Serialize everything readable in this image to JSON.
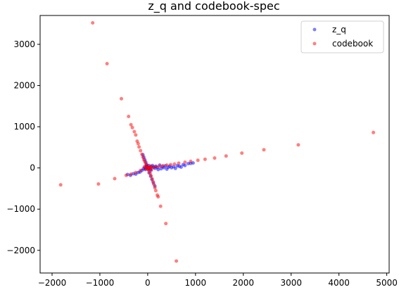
{
  "chart_data": {
    "type": "scatter",
    "title": "z_q and codebook-spec",
    "xlabel": "",
    "ylabel": "",
    "xlim": [
      -2250,
      5050
    ],
    "ylim": [
      -2550,
      3700
    ],
    "xticks": [
      -2000,
      -1000,
      0,
      1000,
      2000,
      3000,
      4000,
      5000
    ],
    "yticks": [
      -2000,
      -1000,
      0,
      1000,
      2000,
      3000
    ],
    "grid": false,
    "legend_position": "upper right",
    "series": [
      {
        "name": "z_q",
        "color": "#0000ff",
        "points": [
          [
            -90,
            -20
          ],
          [
            -60,
            10
          ],
          [
            -40,
            -5
          ],
          [
            -20,
            20
          ],
          [
            0,
            0
          ],
          [
            20,
            -15
          ],
          [
            40,
            10
          ],
          [
            60,
            -30
          ],
          [
            80,
            30
          ],
          [
            100,
            60
          ],
          [
            130,
            20
          ],
          [
            150,
            -10
          ],
          [
            170,
            40
          ],
          [
            200,
            10
          ],
          [
            220,
            -40
          ],
          [
            250,
            70
          ],
          [
            280,
            -20
          ],
          [
            310,
            30
          ],
          [
            340,
            5
          ],
          [
            370,
            50
          ],
          [
            400,
            -30
          ],
          [
            430,
            15
          ],
          [
            460,
            40
          ],
          [
            500,
            5
          ],
          [
            540,
            30
          ],
          [
            580,
            -10
          ],
          [
            620,
            55
          ],
          [
            660,
            40
          ],
          [
            700,
            20
          ],
          [
            740,
            80
          ],
          [
            780,
            60
          ],
          [
            850,
            105
          ],
          [
            900,
            110
          ],
          [
            950,
            120
          ],
          [
            -120,
            -60
          ],
          [
            -160,
            -100
          ],
          [
            -200,
            -110
          ],
          [
            -250,
            -150
          ],
          [
            -300,
            -140
          ],
          [
            -360,
            -180
          ],
          [
            -420,
            -160
          ],
          [
            30,
            -120
          ],
          [
            60,
            -200
          ],
          [
            90,
            -280
          ],
          [
            120,
            -360
          ],
          [
            150,
            -440
          ],
          [
            -20,
            80
          ],
          [
            -40,
            140
          ],
          [
            -60,
            200
          ],
          [
            -80,
            260
          ],
          [
            -100,
            320
          ],
          [
            -30,
            50
          ],
          [
            -10,
            30
          ],
          [
            10,
            -40
          ],
          [
            25,
            60
          ],
          [
            -50,
            -40
          ],
          [
            70,
            -60
          ]
        ]
      },
      {
        "name": "codebook",
        "color": "#ff0000",
        "points": [
          [
            -1150,
            3520
          ],
          [
            -850,
            2530
          ],
          [
            -550,
            1680
          ],
          [
            -400,
            1250
          ],
          [
            -350,
            1050
          ],
          [
            -320,
            980
          ],
          [
            -280,
            880
          ],
          [
            -250,
            800
          ],
          [
            -220,
            650
          ],
          [
            -200,
            590
          ],
          [
            -180,
            510
          ],
          [
            -150,
            420
          ],
          [
            -120,
            330
          ],
          [
            -100,
            260
          ],
          [
            -80,
            200
          ],
          [
            -60,
            150
          ],
          [
            -40,
            100
          ],
          [
            -20,
            50
          ],
          [
            4720,
            860
          ],
          [
            3150,
            560
          ],
          [
            2430,
            440
          ],
          [
            1970,
            360
          ],
          [
            1640,
            290
          ],
          [
            1400,
            240
          ],
          [
            1200,
            210
          ],
          [
            1050,
            185
          ],
          [
            900,
            160
          ],
          [
            780,
            140
          ],
          [
            650,
            115
          ],
          [
            560,
            95
          ],
          [
            480,
            80
          ],
          [
            400,
            70
          ],
          [
            320,
            55
          ],
          [
            250,
            40
          ],
          [
            180,
            30
          ],
          [
            120,
            20
          ],
          [
            60,
            10
          ],
          [
            -1820,
            -410
          ],
          [
            -1030,
            -390
          ],
          [
            -690,
            -260
          ],
          [
            -450,
            -180
          ],
          [
            -350,
            -150
          ],
          [
            -250,
            -110
          ],
          [
            -150,
            -60
          ],
          [
            600,
            -2260
          ],
          [
            380,
            -1350
          ],
          [
            270,
            -930
          ],
          [
            220,
            -700
          ],
          [
            200,
            -660
          ],
          [
            170,
            -550
          ],
          [
            150,
            -480
          ],
          [
            130,
            -400
          ],
          [
            110,
            -330
          ],
          [
            90,
            -260
          ],
          [
            70,
            -190
          ],
          [
            50,
            -130
          ],
          [
            30,
            -80
          ],
          [
            10,
            -30
          ],
          [
            -50,
            -20
          ],
          [
            0,
            0
          ],
          [
            30,
            20
          ],
          [
            -20,
            10
          ],
          [
            20,
            -10
          ],
          [
            60,
            40
          ],
          [
            -70,
            30
          ],
          [
            80,
            -30
          ]
        ]
      }
    ]
  }
}
